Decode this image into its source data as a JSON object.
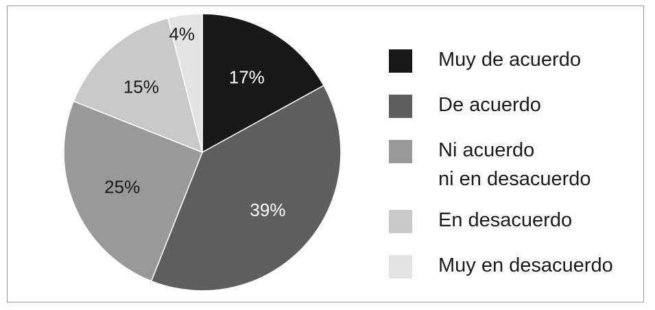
{
  "chart_data": {
    "type": "pie",
    "title": "",
    "slices": [
      {
        "label": "Muy de acuerdo",
        "value": 17,
        "display": "17%",
        "color": "#181818",
        "text_color": "#ffffff"
      },
      {
        "label": "De acuerdo",
        "value": 39,
        "display": "39%",
        "color": "#5e5e5e",
        "text_color": "#ffffff"
      },
      {
        "label": "Ni acuerdo\nni en desacuerdo",
        "value": 25,
        "display": "25%",
        "color": "#999999",
        "text_color": "#1a1a1a"
      },
      {
        "label": "En desacuerdo",
        "value": 15,
        "display": "15%",
        "color": "#c9c9c9",
        "text_color": "#1a1a1a"
      },
      {
        "label": "Muy en desacuerdo",
        "value": 4,
        "display": "4%",
        "color": "#e3e3e3",
        "text_color": "#1a1a1a"
      }
    ],
    "start_angle": "12 o'clock",
    "direction": "clockwise",
    "legend_position": "right"
  },
  "legend": {
    "items": [
      {
        "line1": "Muy de acuerdo",
        "line2": ""
      },
      {
        "line1": "De acuerdo",
        "line2": ""
      },
      {
        "line1": "Ni acuerdo",
        "line2": "ni en desacuerdo"
      },
      {
        "line1": "En desacuerdo",
        "line2": ""
      },
      {
        "line1": "Muy en desacuerdo",
        "line2": ""
      }
    ]
  }
}
